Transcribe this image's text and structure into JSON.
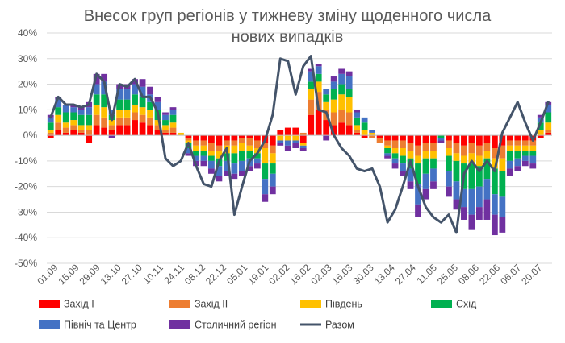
{
  "chart_data": {
    "type": "bar",
    "stacked": true,
    "title_lines": [
      "Внесок груп регіонів у тижневу зміну щоденного числа",
      "нових випадків"
    ],
    "xlabel": "",
    "ylabel": "",
    "ylim": [
      -50,
      40
    ],
    "y_ticks": [
      -50,
      -40,
      -30,
      -20,
      -10,
      0,
      10,
      20,
      30,
      40
    ],
    "y_tick_labels": [
      "-50%",
      "-40%",
      "-30%",
      "-20%",
      "-10%",
      "0%",
      "10%",
      "20%",
      "30%",
      "40%"
    ],
    "grid": true,
    "legend_position": "bottom",
    "x_tick_labels": [
      "01.09",
      "15.09",
      "29.09",
      "13.10",
      "27.10",
      "10.11",
      "24.11",
      "08.12",
      "22.12",
      "05.01",
      "19.01",
      "02.02",
      "16.02",
      "02.03",
      "16.03",
      "30.03",
      "13.04",
      "27.04",
      "11.05",
      "25.05",
      "08.06",
      "22.06",
      "06.07",
      "20.07"
    ],
    "colors": {
      "Захід І": "#ff0000",
      "Захід ІІ": "#ed7d31",
      "Південь": "#ffc000",
      "Схід": "#00b050",
      "Північ та Центр": "#4472c4",
      "Столичний регіон": "#7030a0",
      "Разом": "#44546a"
    },
    "series": [
      {
        "name": "Захід І",
        "values": [
          -1,
          2,
          1,
          2,
          1,
          -3,
          4,
          3,
          2,
          4,
          4,
          6,
          5,
          4,
          2,
          1,
          1,
          0,
          -1,
          -2,
          -2,
          -3,
          -4,
          -2,
          -2,
          -1,
          -1,
          -2,
          -3,
          -4,
          2,
          3,
          3,
          -3,
          8,
          10,
          6,
          4,
          5,
          4,
          1,
          -1,
          0,
          -1,
          -2,
          -2,
          -2,
          -3,
          -4,
          -3,
          -3,
          0,
          -2,
          -3,
          -4,
          -3,
          -4,
          -3,
          -5,
          -4,
          -2,
          -2,
          -2,
          -2,
          -1,
          1
        ]
      },
      {
        "name": "Захід ІІ",
        "values": [
          1,
          3,
          2,
          2,
          1,
          2,
          4,
          4,
          2,
          3,
          3,
          3,
          3,
          3,
          2,
          1,
          2,
          0,
          -1,
          -2,
          -2,
          -3,
          -2,
          -2,
          -2,
          -2,
          -3,
          -3,
          -2,
          -3,
          0,
          0,
          0,
          1,
          6,
          7,
          4,
          5,
          5,
          5,
          1,
          0,
          -1,
          -2,
          -2,
          -3,
          -3,
          -3,
          -4,
          -3,
          -3,
          0,
          -3,
          -4,
          -4,
          -4,
          -4,
          -3,
          -4,
          -5,
          -2,
          -2,
          -2,
          -2,
          0,
          1
        ]
      },
      {
        "name": "Південь",
        "values": [
          1,
          3,
          2,
          2,
          2,
          2,
          4,
          4,
          2,
          3,
          3,
          3,
          3,
          3,
          2,
          2,
          2,
          1,
          -1,
          -2,
          -2,
          -2,
          -3,
          -3,
          -3,
          -3,
          -2,
          -2,
          -6,
          -4,
          -2,
          -2,
          -2,
          -1,
          4,
          4,
          3,
          5,
          6,
          6,
          2,
          2,
          1,
          0,
          -1,
          -2,
          -3,
          -3,
          -3,
          -3,
          -3,
          0,
          -3,
          -3,
          -3,
          -4,
          -4,
          -3,
          -4,
          -5,
          -2,
          -2,
          -2,
          -2,
          2,
          3
        ]
      },
      {
        "name": "Схід",
        "values": [
          3,
          3,
          4,
          3,
          4,
          4,
          4,
          5,
          2,
          4,
          4,
          4,
          4,
          3,
          4,
          2,
          3,
          0,
          -2,
          -2,
          -2,
          -2,
          -3,
          -3,
          -4,
          -4,
          -3,
          -2,
          -6,
          -4,
          0,
          0,
          0,
          0,
          3,
          3,
          3,
          4,
          4,
          3,
          3,
          3,
          0,
          0,
          -2,
          -2,
          -3,
          -4,
          -8,
          -6,
          -4,
          -1,
          -6,
          -8,
          -10,
          -10,
          -8,
          -8,
          -10,
          -10,
          -4,
          -3,
          -2,
          -2,
          3,
          4
        ]
      },
      {
        "name": "Північ та Центр",
        "values": [
          2,
          3,
          3,
          2,
          2,
          3,
          4,
          5,
          2,
          4,
          4,
          4,
          4,
          3,
          3,
          2,
          2,
          0,
          -2,
          -2,
          -2,
          -3,
          -4,
          -4,
          -4,
          -4,
          -3,
          -2,
          -6,
          -5,
          -1,
          -2,
          -1,
          -1,
          4,
          3,
          2,
          3,
          4,
          5,
          2,
          2,
          1,
          0,
          -1,
          -2,
          -3,
          -5,
          -8,
          -6,
          -5,
          -1,
          -6,
          -7,
          -7,
          -10,
          -8,
          -8,
          -8,
          -8,
          -3,
          -3,
          -2,
          -3,
          2,
          3
        ]
      },
      {
        "name": "Столичний регіон",
        "values": [
          1,
          1,
          0,
          1,
          1,
          2,
          4,
          3,
          -1,
          2,
          2,
          2,
          3,
          3,
          2,
          1,
          1,
          0,
          -1,
          -2,
          -2,
          -2,
          -2,
          -2,
          -2,
          -2,
          -2,
          -2,
          -3,
          -3,
          -1,
          -2,
          -2,
          -1,
          1,
          1,
          -2,
          2,
          2,
          2,
          1,
          0,
          0,
          0,
          -1,
          -2,
          -2,
          -3,
          -5,
          -4,
          -3,
          -1,
          -4,
          -4,
          -5,
          -6,
          -5,
          -8,
          -8,
          -6,
          -3,
          -2,
          -2,
          -2,
          1,
          1
        ]
      }
    ],
    "total": {
      "name": "Разом",
      "values": [
        7,
        15,
        12,
        12,
        11,
        12,
        24,
        21,
        6,
        20,
        19,
        22,
        15,
        15,
        9,
        -9,
        -12,
        -10,
        -3,
        -12,
        -19,
        -20,
        -10,
        -5,
        -31,
        -20,
        -10,
        -7,
        -2,
        8,
        30,
        29,
        16,
        27,
        31,
        10,
        9,
        0,
        -5,
        -8,
        -13,
        -14,
        -13,
        -20,
        -34,
        -29,
        -20,
        -10,
        -20,
        -28,
        -32,
        -34,
        -31,
        -38,
        -15,
        -10,
        -14,
        -10,
        -14,
        1,
        7,
        13,
        5,
        -2,
        5,
        13
      ]
    }
  },
  "legend": [
    {
      "label": "Захід І",
      "kind": "box",
      "color": "#ff0000"
    },
    {
      "label": "Захід ІІ",
      "kind": "box",
      "color": "#ed7d31"
    },
    {
      "label": "Південь",
      "kind": "box",
      "color": "#ffc000"
    },
    {
      "label": "Схід",
      "kind": "box",
      "color": "#00b050"
    },
    {
      "label": "Північ та Центр",
      "kind": "box",
      "color": "#4472c4"
    },
    {
      "label": "Столичний регіон",
      "kind": "box",
      "color": "#7030a0"
    },
    {
      "label": "Разом",
      "kind": "line",
      "color": "#44546a"
    }
  ]
}
